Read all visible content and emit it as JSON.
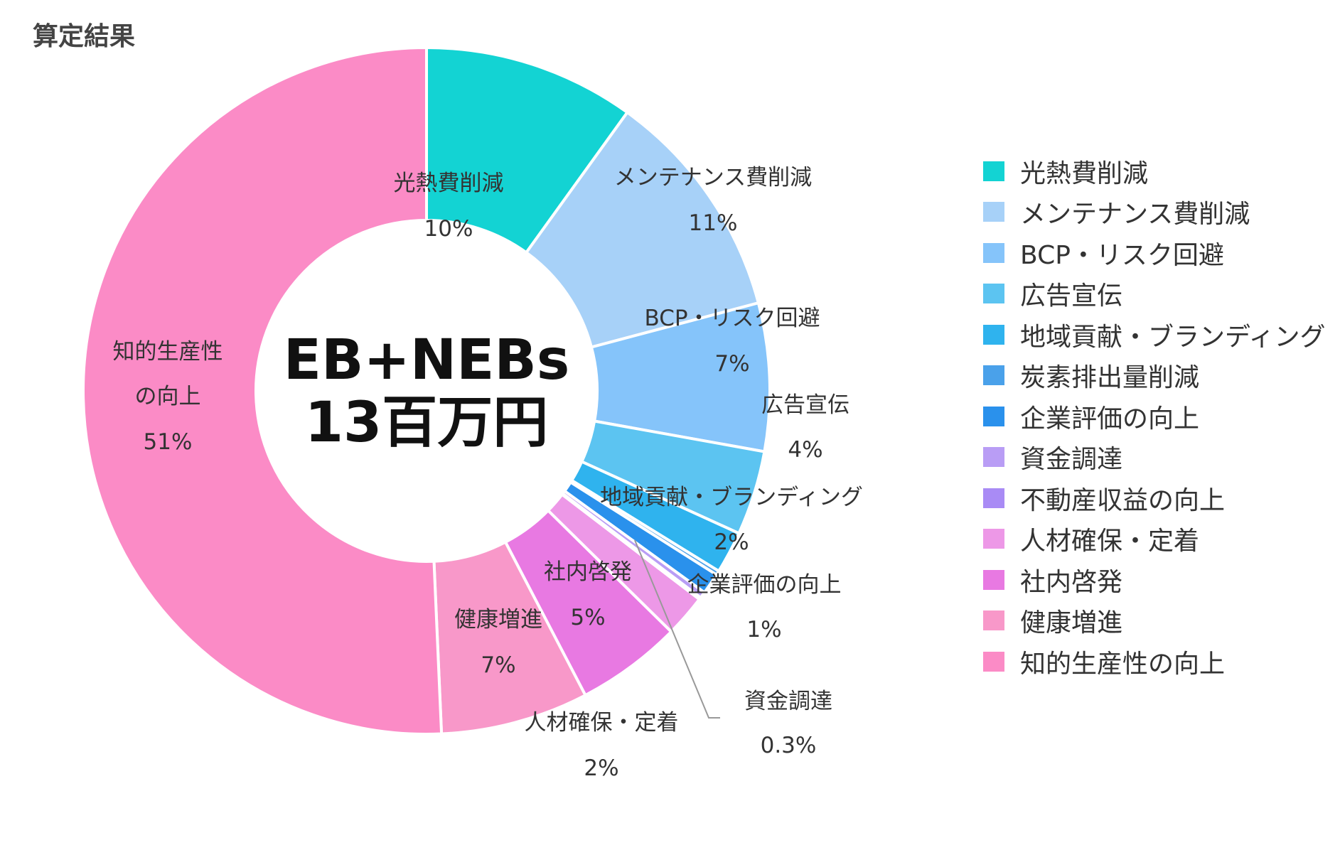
{
  "title": "算定結果",
  "chart_data": {
    "type": "pie",
    "donut": true,
    "title": "算定結果",
    "center_text": [
      "EB+NEBs",
      "13百万円"
    ],
    "start": "top",
    "direction": "clockwise",
    "legend_position": "right",
    "slices": [
      {
        "name": "光熱費削減",
        "value": 10,
        "label": "10%",
        "color": "#13d3d3"
      },
      {
        "name": "メンテナンス費削減",
        "value": 11,
        "label": "11%",
        "color": "#a7d1f8"
      },
      {
        "name": "BCP・リスク回避",
        "value": 7,
        "label": "7%",
        "color": "#85c4fa"
      },
      {
        "name": "広告宣伝",
        "value": 4,
        "label": "4%",
        "color": "#5cc4f1"
      },
      {
        "name": "地域貢献・ブランディング",
        "value": 2,
        "label": "2%",
        "color": "#2fb3ee"
      },
      {
        "name": "炭素排出量削減",
        "value": 0.2,
        "label": null,
        "color": "#4aa1ea"
      },
      {
        "name": "企業評価の向上",
        "value": 1,
        "label": "1%",
        "color": "#2a91ec"
      },
      {
        "name": "資金調達",
        "value": 0.3,
        "label": "0.3%",
        "color": "#b99df5"
      },
      {
        "name": "不動産収益の向上",
        "value": 0.1,
        "label": null,
        "color": "#a98bf5"
      },
      {
        "name": "人材確保・定着",
        "value": 2,
        "label": "2%",
        "color": "#ed98e7"
      },
      {
        "name": "社内啓発",
        "value": 5,
        "label": "5%",
        "color": "#e879e2"
      },
      {
        "name": "健康増進",
        "value": 7,
        "label": "7%",
        "color": "#f898c9"
      },
      {
        "name": "知的生産性の向上",
        "value": 51,
        "label": "51%",
        "color": "#fb8bc6"
      }
    ]
  }
}
